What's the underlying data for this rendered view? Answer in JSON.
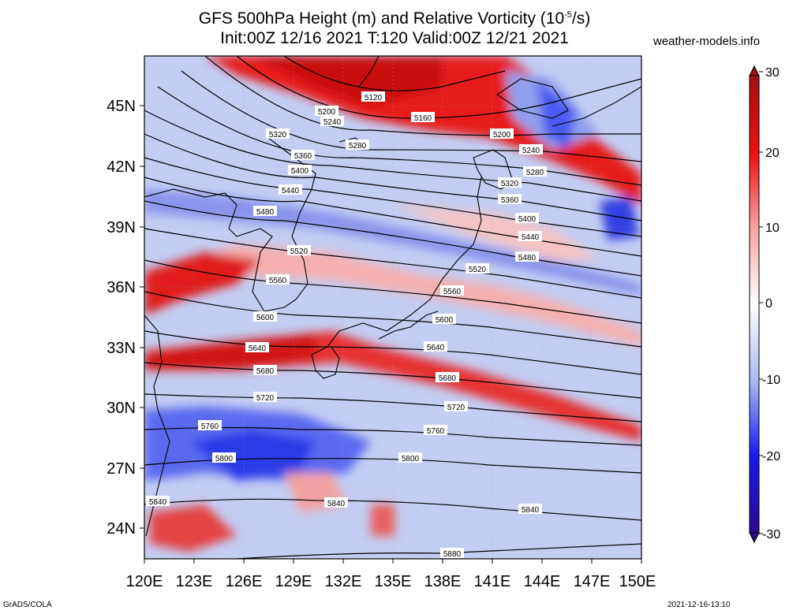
{
  "header": {
    "title_line1": "GFS 500hPa Height (m) and Relative Vorticity (10",
    "title_sup": "-5",
    "title_tail": "/s)",
    "title_line2": "Init:00Z 12/16 2021 T:120 Valid:00Z 12/21 2021",
    "site": "weather-models.info"
  },
  "footer": {
    "left": "GrADS/COLA",
    "right": "2021-12-16-13:10"
  },
  "map": {
    "lat_labels": [
      "45N",
      "42N",
      "39N",
      "36N",
      "33N",
      "30N",
      "27N",
      "24N"
    ],
    "lon_labels": [
      "120E",
      "123E",
      "126E",
      "129E",
      "132E",
      "135E",
      "138E",
      "141E",
      "144E",
      "147E",
      "150E"
    ],
    "contour_labels": [
      "5120",
      "5160",
      "5200",
      "5240",
      "5280",
      "5320",
      "5360",
      "5400",
      "5440",
      "5480",
      "5520",
      "5560",
      "5600",
      "5640",
      "5680",
      "5720",
      "5760",
      "5800",
      "5840",
      "5880"
    ]
  },
  "colorbar": {
    "labels": [
      "30",
      "20",
      "10",
      "0",
      "-10",
      "-20",
      "-30"
    ],
    "colors": {
      "dark_red": "#a01010",
      "red": "#ee1111",
      "pink": "#f5a0a0",
      "white": "#ffffff",
      "light_blue": "#a8b8f0",
      "blue": "#1a1aee",
      "navy": "#2a0a8a"
    }
  }
}
